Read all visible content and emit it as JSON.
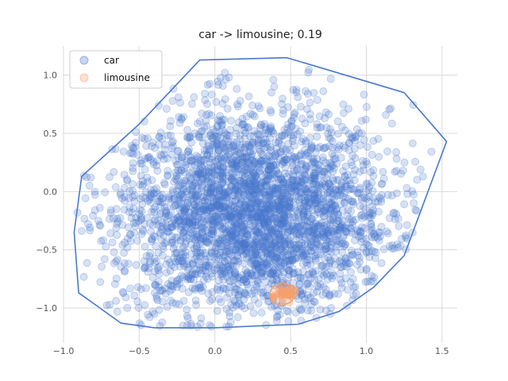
{
  "chart_data": {
    "type": "scatter",
    "title": "car -> limousine; 0.19",
    "xlabel": "",
    "ylabel": "",
    "xlim": [
      -1.0,
      1.6
    ],
    "ylim": [
      -1.3,
      1.25
    ],
    "xticks": [
      -1.0,
      -0.5,
      0.0,
      0.5,
      1.0,
      1.5
    ],
    "xtick_labels": [
      "−1.0",
      "−0.5",
      "0.0",
      "0.5",
      "1.0",
      "1.5"
    ],
    "yticks": [
      -1.0,
      -0.5,
      0.0,
      0.5,
      1.0
    ],
    "ytick_labels": [
      "−1.0",
      "−0.5",
      "0.0",
      "0.5",
      "1.0"
    ],
    "grid": true,
    "legend_position": "top-left",
    "series": [
      {
        "name": "car",
        "color": "#4878cf",
        "hull": [
          [
            -0.93,
            -0.35
          ],
          [
            -0.9,
            -0.87
          ],
          [
            -0.62,
            -1.13
          ],
          [
            -0.4,
            -1.17
          ],
          [
            0.0,
            -1.17
          ],
          [
            0.55,
            -1.14
          ],
          [
            0.82,
            -1.03
          ],
          [
            1.05,
            -0.82
          ],
          [
            1.25,
            -0.55
          ],
          [
            1.53,
            0.43
          ],
          [
            1.45,
            0.55
          ],
          [
            1.25,
            0.85
          ],
          [
            0.5,
            1.14
          ],
          [
            0.47,
            1.15
          ],
          [
            -0.1,
            1.13
          ],
          [
            -0.5,
            0.58
          ],
          [
            -0.88,
            0.13
          ],
          [
            -0.93,
            -0.35
          ]
        ],
        "cluster_center": [
          0.25,
          -0.2
        ],
        "cluster_spread": [
          0.45,
          0.45
        ],
        "point_count": 3200
      },
      {
        "name": "limousine",
        "color": "#f5a06b",
        "hull": [
          [
            0.38,
            -0.82
          ],
          [
            0.45,
            -0.78
          ],
          [
            0.52,
            -0.82
          ],
          [
            0.55,
            -0.87
          ],
          [
            0.5,
            -0.95
          ],
          [
            0.44,
            -0.98
          ],
          [
            0.38,
            -0.95
          ],
          [
            0.36,
            -0.88
          ],
          [
            0.38,
            -0.82
          ]
        ],
        "cluster_center": [
          0.45,
          -0.88
        ],
        "cluster_spread": [
          0.04,
          0.04
        ],
        "point_count": 40
      }
    ]
  }
}
